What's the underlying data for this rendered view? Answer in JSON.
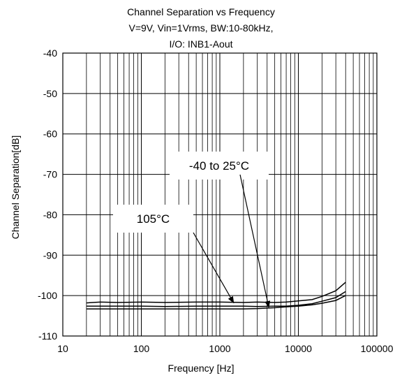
{
  "chart_data": {
    "type": "line",
    "title_lines": [
      "Channel Separation vs Frequency",
      "V=9V, Vin=1Vrms, BW:10-80kHz,",
      "I/O: INB1-Aout"
    ],
    "xlabel": "Frequency [Hz]",
    "ylabel": "Channel Separation[dB]",
    "x_scale": "log",
    "xlim": [
      10,
      100000
    ],
    "ylim": [
      -110,
      -40
    ],
    "x_ticks": [
      "10",
      "100",
      "1000",
      "10000",
      "100000"
    ],
    "y_ticks": [
      "-40",
      "-50",
      "-60",
      "-70",
      "-80",
      "-90",
      "-100",
      "-110"
    ],
    "grid": true,
    "series": [
      {
        "x": [
          20,
          30,
          50,
          100,
          200,
          500,
          1000,
          2000,
          3000,
          5000,
          7000,
          10000,
          15000,
          20000,
          30000,
          40000
        ],
        "y": [
          -101.8,
          -101.6,
          -101.7,
          -101.6,
          -101.7,
          -101.6,
          -101.6,
          -101.7,
          -101.6,
          -101.7,
          -101.6,
          -101.3,
          -101.0,
          -100.2,
          -98.8,
          -96.7
        ]
      },
      {
        "x": [
          20,
          30,
          50,
          100,
          200,
          500,
          1000,
          2000,
          3000,
          5000,
          7000,
          10000,
          15000,
          20000,
          30000,
          40000
        ],
        "y": [
          -102.6,
          -102.6,
          -102.6,
          -102.6,
          -102.7,
          -102.6,
          -102.6,
          -102.6,
          -102.7,
          -102.6,
          -102.6,
          -102.4,
          -102.0,
          -101.4,
          -100.5,
          -99.0
        ]
      },
      {
        "x": [
          20,
          30,
          50,
          100,
          200,
          500,
          1000,
          2000,
          3000,
          5000,
          7000,
          10000,
          15000,
          20000,
          30000,
          40000
        ],
        "y": [
          -103.3,
          -103.3,
          -103.3,
          -103.3,
          -103.3,
          -103.3,
          -103.3,
          -103.3,
          -103.2,
          -103.0,
          -102.8,
          -102.6,
          -102.3,
          -101.9,
          -101.2,
          -100.0
        ]
      }
    ],
    "annotations": [
      {
        "text": "-40 to 25°C",
        "arrow_to": [
          4200,
          -102.9
        ]
      },
      {
        "text": "105°C",
        "arrow_to": [
          1500,
          -101.8
        ]
      }
    ]
  }
}
